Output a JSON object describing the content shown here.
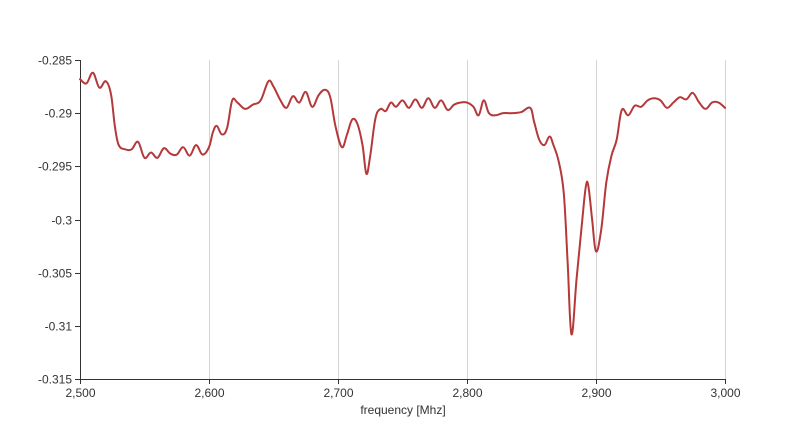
{
  "chart_data": {
    "type": "line",
    "title": "",
    "xlabel": "frequency [Mhz]",
    "ylabel": "",
    "xlim": [
      2500,
      3000
    ],
    "ylim": [
      -0.315,
      -0.285
    ],
    "x_ticks": [
      2500,
      2600,
      2700,
      2800,
      2900,
      3000
    ],
    "x_tick_labels": [
      "2,500",
      "2,600",
      "2,700",
      "2,800",
      "2,900",
      "3,000"
    ],
    "y_ticks": [
      -0.285,
      -0.29,
      -0.295,
      -0.3,
      -0.305,
      -0.31,
      -0.315
    ],
    "y_tick_labels": [
      "-0.285",
      "-0.29",
      "-0.295",
      "-0.3",
      "-0.305",
      "-0.31",
      "-0.315"
    ],
    "grid": {
      "vertical": true,
      "horizontal": false
    },
    "line_color": "#b5383a",
    "grid_color": "#d3d3d3",
    "axis_color": "#333333",
    "series": [
      {
        "x": [
          2500,
          2505,
          2510,
          2515,
          2520,
          2524,
          2527,
          2530,
          2535,
          2540,
          2545,
          2550,
          2555,
          2560,
          2565,
          2570,
          2575,
          2580,
          2585,
          2590,
          2595,
          2600,
          2603,
          2606,
          2610,
          2614,
          2618,
          2622,
          2628,
          2634,
          2640,
          2646,
          2650,
          2655,
          2660,
          2665,
          2670,
          2675,
          2680,
          2685,
          2690,
          2694,
          2698,
          2703,
          2707,
          2711,
          2715,
          2719,
          2722,
          2725,
          2729,
          2733,
          2737,
          2741,
          2745,
          2750,
          2755,
          2760,
          2765,
          2770,
          2775,
          2780,
          2785,
          2790,
          2795,
          2800,
          2805,
          2809,
          2813,
          2817,
          2822,
          2828,
          2835,
          2842,
          2849,
          2852,
          2856,
          2860,
          2864,
          2867,
          2871,
          2875,
          2878,
          2881,
          2885,
          2889,
          2892,
          2894,
          2897,
          2900,
          2904,
          2908,
          2912,
          2916,
          2920,
          2925,
          2930,
          2935,
          2940,
          2945,
          2950,
          2955,
          2960,
          2965,
          2970,
          2975,
          2980,
          2985,
          2990,
          2995,
          3000
        ],
        "y": [
          -0.2868,
          -0.2872,
          -0.2862,
          -0.2876,
          -0.287,
          -0.2882,
          -0.2912,
          -0.293,
          -0.2934,
          -0.2934,
          -0.2927,
          -0.2942,
          -0.2937,
          -0.2942,
          -0.2933,
          -0.2938,
          -0.2939,
          -0.2932,
          -0.294,
          -0.293,
          -0.2939,
          -0.2932,
          -0.2918,
          -0.2912,
          -0.292,
          -0.2914,
          -0.2888,
          -0.289,
          -0.2896,
          -0.2892,
          -0.2888,
          -0.287,
          -0.2875,
          -0.2887,
          -0.2895,
          -0.2884,
          -0.289,
          -0.288,
          -0.2894,
          -0.2883,
          -0.2878,
          -0.2885,
          -0.2912,
          -0.2932,
          -0.292,
          -0.2906,
          -0.291,
          -0.293,
          -0.2957,
          -0.294,
          -0.2905,
          -0.2896,
          -0.2898,
          -0.289,
          -0.2894,
          -0.2888,
          -0.2895,
          -0.2887,
          -0.2895,
          -0.2886,
          -0.2895,
          -0.2888,
          -0.2897,
          -0.2892,
          -0.289,
          -0.289,
          -0.2894,
          -0.2902,
          -0.2888,
          -0.29,
          -0.2902,
          -0.29,
          -0.29,
          -0.2899,
          -0.2895,
          -0.2908,
          -0.2925,
          -0.293,
          -0.2922,
          -0.293,
          -0.2945,
          -0.2975,
          -0.304,
          -0.3108,
          -0.3055,
          -0.3005,
          -0.297,
          -0.2968,
          -0.3,
          -0.303,
          -0.301,
          -0.2965,
          -0.294,
          -0.2925,
          -0.2897,
          -0.2902,
          -0.2893,
          -0.2894,
          -0.2888,
          -0.2886,
          -0.2888,
          -0.2895,
          -0.289,
          -0.2885,
          -0.2887,
          -0.2881,
          -0.289,
          -0.2896,
          -0.289,
          -0.289,
          -0.2895
        ]
      }
    ]
  }
}
